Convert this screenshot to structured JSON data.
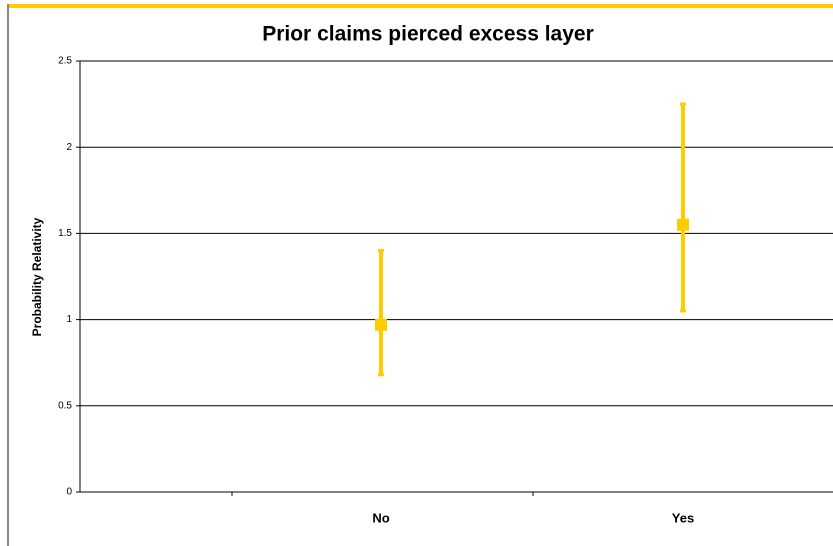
{
  "chart_data": {
    "type": "errorbar",
    "title": "Prior claims pierced excess layer",
    "y_label": "Probability Relativity",
    "categories": [
      "No",
      "Yes"
    ],
    "series": [
      {
        "color": "#ffcc00",
        "values": [
          0.97,
          1.55
        ],
        "error_low": [
          0.68,
          1.05
        ],
        "error_high": [
          1.4,
          2.25
        ]
      }
    ],
    "ylim": [
      0,
      2.5
    ],
    "yticks": [
      0,
      0.5,
      1,
      1.5,
      2,
      2.5
    ],
    "grid": true
  }
}
